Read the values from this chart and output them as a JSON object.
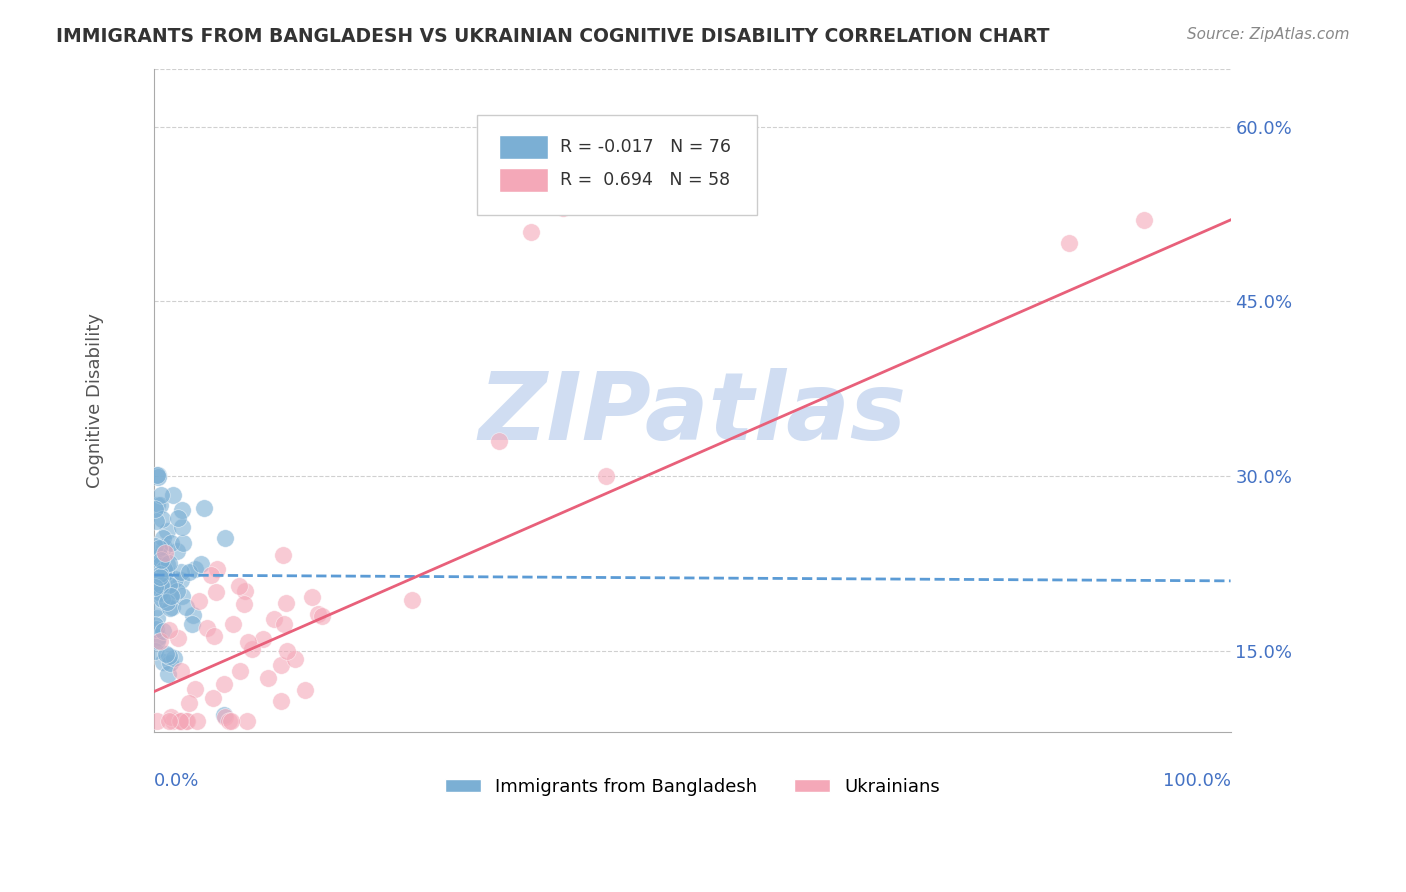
{
  "title": "IMMIGRANTS FROM BANGLADESH VS UKRAINIAN COGNITIVE DISABILITY CORRELATION CHART",
  "source": "Source: ZipAtlas.com",
  "ylabel": "Cognitive Disability",
  "ytick_labels": [
    "15.0%",
    "30.0%",
    "45.0%",
    "60.0%"
  ],
  "ytick_values": [
    0.15,
    0.3,
    0.45,
    0.6
  ],
  "xlim": [
    0.0,
    1.0
  ],
  "ylim": [
    0.08,
    0.65
  ],
  "bangladesh_color": "#7bafd4",
  "ukraine_color": "#f4a8b8",
  "trend_bangladesh_color": "#5b9bd5",
  "trend_ukraine_color": "#e8607a",
  "watermark": "ZIPatlas",
  "watermark_color": "#c8d8f0",
  "grid_color": "#d0d0d0",
  "title_color": "#333333",
  "axis_label_color": "#4472c4",
  "bangladesh_trend_y_start": 0.215,
  "bangladesh_trend_y_end": 0.21,
  "ukraine_trend_y_start": 0.115,
  "ukraine_trend_y_end": 0.52
}
